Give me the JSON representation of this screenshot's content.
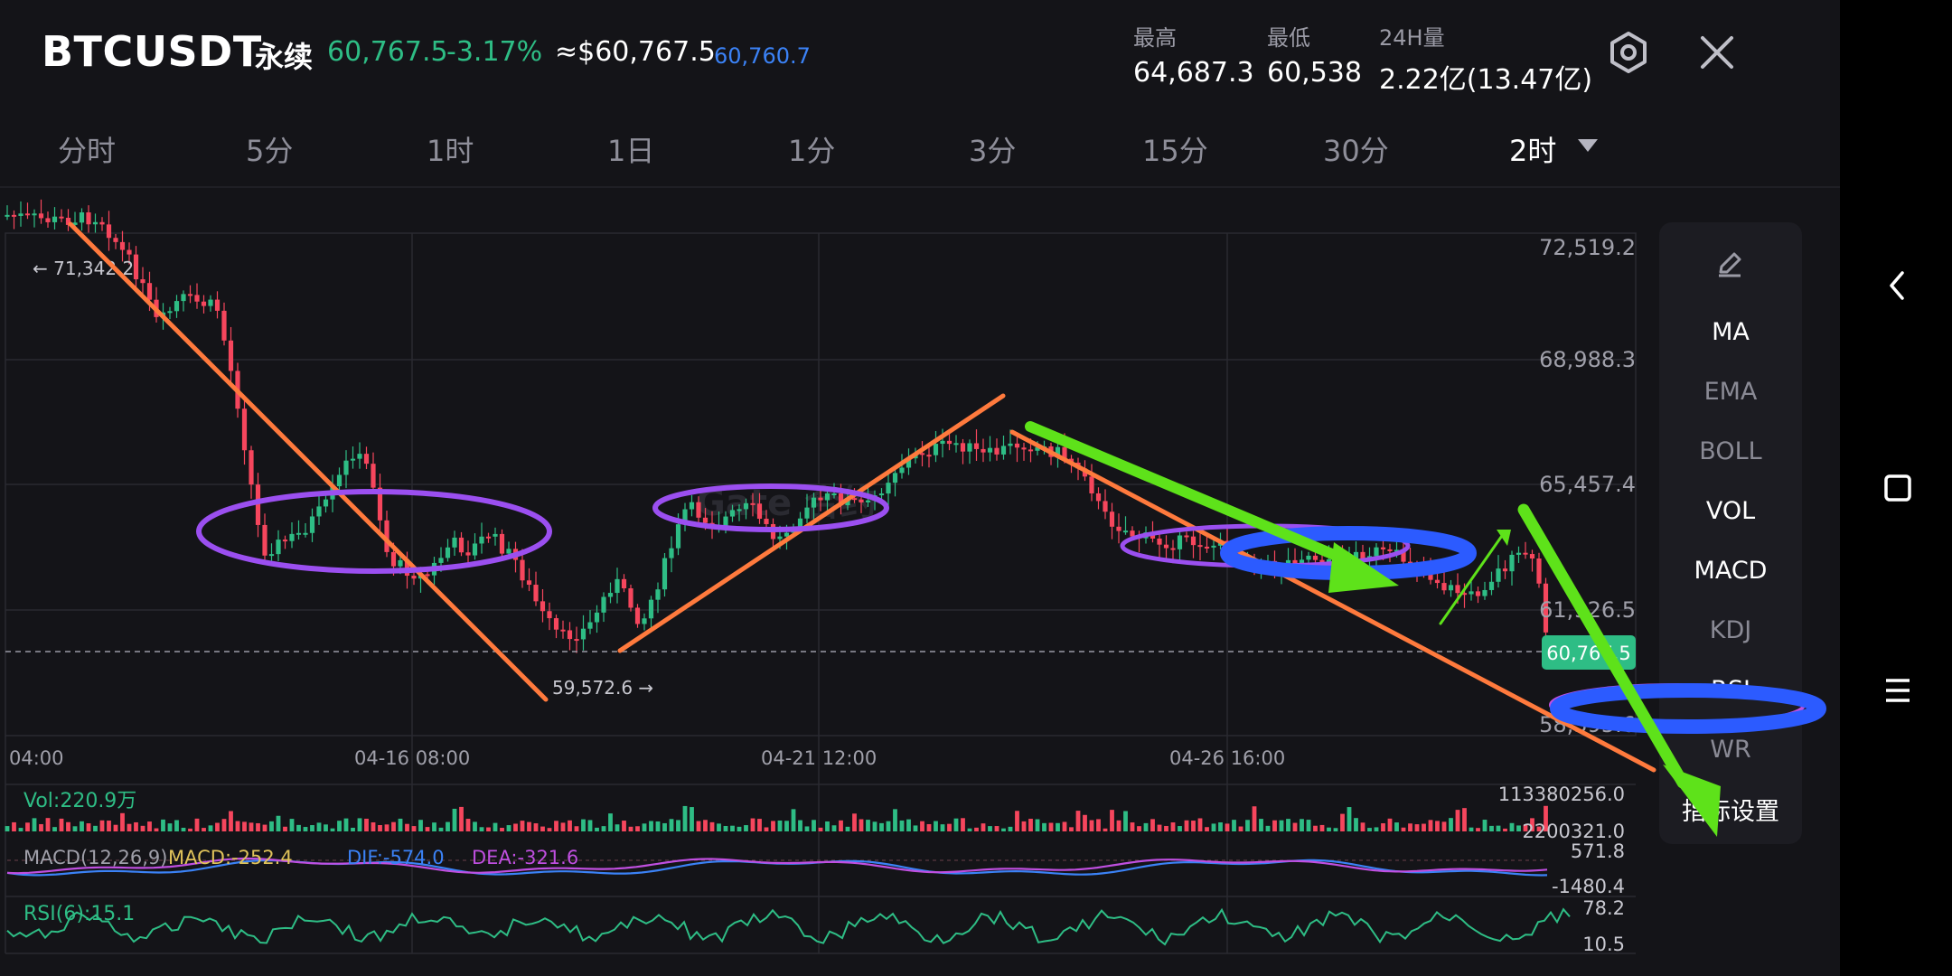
{
  "header": {
    "symbol": "BTCUSDT",
    "contract_type": "永续",
    "last_price": "60,767.5",
    "change_pct": "-3.17%",
    "usd_price": "≈$60,767.5",
    "mark_price": "60,760.7",
    "high_label": "最高",
    "high_value": "64,687.3",
    "low_label": "最低",
    "low_value": "60,538",
    "volume_label": "24H量",
    "volume_value": "2.22亿(13.47亿)",
    "settings_icon": "gear-icon",
    "close_icon": "close-icon"
  },
  "timeframes": [
    "分时",
    "5分",
    "1时",
    "1日",
    "1分",
    "3分",
    "15分",
    "30分",
    "2时"
  ],
  "active_timeframe": "2时",
  "chart": {
    "price_axis": [
      "72,519.2",
      "68,988.3",
      "65,457.4",
      "61,926.5",
      "58,395.6"
    ],
    "time_axis": [
      "04:00",
      "04-16 08:00",
      "04-21 12:00",
      "04-26 16:00"
    ],
    "high_marker": "← 71,342.2",
    "low_marker": "59,572.6 →",
    "current_price_tag": "60,767.5",
    "watermark": "Gate 合约",
    "colors": {
      "up": "#2ebd85",
      "down": "#f6465d",
      "annot_orange": "#ff7a3d",
      "annot_purple": "#9b4ff0",
      "annot_blue": "#2c5bff",
      "annot_green": "#5ee21a"
    }
  },
  "volume": {
    "label": "Vol:220.9万",
    "axis_top": "113380256.0",
    "axis_bottom": "2200321.0"
  },
  "macd": {
    "title": "MACD(12,26,9)",
    "macd": "MACD:-252.4",
    "dif": "DIF:-574.0",
    "dea": "DEA:-321.6",
    "axis_top": "571.8",
    "axis_bottom": "-1480.4"
  },
  "rsi": {
    "label": "RSI(6):15.1",
    "axis_top": "78.2",
    "axis_bottom": "10.5"
  },
  "indicators_panel": {
    "edit_icon": "pencil-icon",
    "items": [
      {
        "label": "MA",
        "active": true
      },
      {
        "label": "EMA",
        "active": false
      },
      {
        "label": "BOLL",
        "active": false
      },
      {
        "label": "VOL",
        "active": true
      },
      {
        "label": "MACD",
        "active": true
      },
      {
        "label": "KDJ",
        "active": false
      },
      {
        "label": "RSI",
        "active": true
      },
      {
        "label": "WR",
        "active": false
      }
    ],
    "settings_label": "指标设置"
  },
  "system_nav": {
    "back": "back-icon",
    "home": "home-icon",
    "menu": "menu-icon"
  }
}
